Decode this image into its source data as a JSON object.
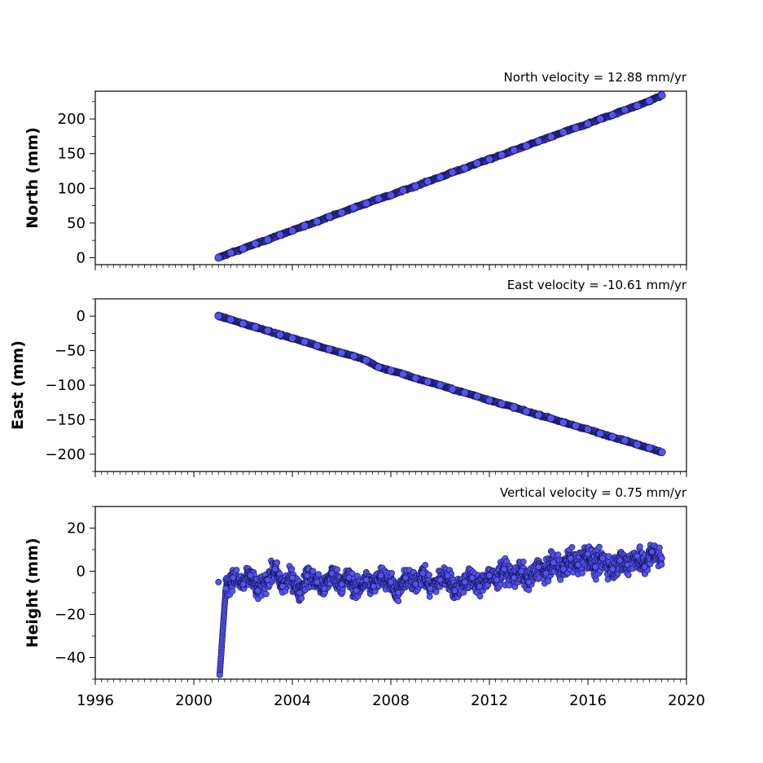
{
  "chart_data": [
    {
      "type": "scatter",
      "title": "North velocity = 12.88 mm/yr",
      "xlabel": "",
      "ylabel": "North (mm)",
      "xlim": [
        1996,
        2020
      ],
      "ylim": [
        -10,
        240
      ],
      "yticks": [
        0,
        50,
        100,
        150,
        200
      ],
      "yticklabels": [
        "0",
        "50",
        "100",
        "150",
        "200"
      ],
      "show_xticklabels": false,
      "grid": false,
      "series": [
        {
          "x": [
            2001.0,
            2001.5,
            2002.0,
            2002.5,
            2003.0,
            2003.5,
            2004.0,
            2004.5,
            2005.0,
            2005.5,
            2006.0,
            2006.5,
            2007.0,
            2007.5,
            2008.0,
            2008.5,
            2009.0,
            2009.5,
            2010.0,
            2010.5,
            2011.0,
            2011.5,
            2012.0,
            2012.5,
            2013.0,
            2013.5,
            2014.0,
            2014.5,
            2015.0,
            2015.5,
            2016.0,
            2016.5,
            2017.0,
            2017.5,
            2018.0,
            2018.5,
            2019.0
          ],
          "y": [
            0,
            7,
            13,
            20,
            26,
            33,
            39,
            46,
            52,
            59,
            65,
            72,
            78,
            85,
            90,
            97,
            103,
            110,
            116,
            123,
            129,
            136,
            142,
            148,
            155,
            161,
            168,
            174,
            181,
            187,
            193,
            200,
            206,
            213,
            219,
            226,
            234
          ]
        }
      ]
    },
    {
      "type": "scatter",
      "title": "East velocity = -10.61 mm/yr",
      "xlabel": "",
      "ylabel": "East (mm)",
      "xlim": [
        1996,
        2020
      ],
      "ylim": [
        -225,
        25
      ],
      "yticks": [
        0,
        -50,
        -100,
        -150,
        -200
      ],
      "yticklabels": [
        "0",
        "−50",
        "−100",
        "−150",
        "−200"
      ],
      "show_xticklabels": false,
      "grid": false,
      "series": [
        {
          "x": [
            2001.0,
            2001.5,
            2002.0,
            2002.5,
            2003.0,
            2003.5,
            2004.0,
            2004.5,
            2005.0,
            2005.5,
            2006.0,
            2006.5,
            2007.0,
            2007.5,
            2008.0,
            2008.5,
            2009.0,
            2009.5,
            2010.0,
            2010.5,
            2011.0,
            2011.5,
            2012.0,
            2012.5,
            2013.0,
            2013.5,
            2014.0,
            2014.5,
            2015.0,
            2015.5,
            2016.0,
            2016.5,
            2017.0,
            2017.5,
            2018.0,
            2018.5,
            2019.0
          ],
          "y": [
            0,
            -5,
            -11,
            -16,
            -21,
            -27,
            -32,
            -37,
            -43,
            -48,
            -53,
            -58,
            -64,
            -74,
            -79,
            -84,
            -90,
            -95,
            -100,
            -106,
            -111,
            -116,
            -122,
            -127,
            -132,
            -138,
            -143,
            -148,
            -154,
            -159,
            -164,
            -170,
            -175,
            -180,
            -186,
            -191,
            -197
          ]
        }
      ]
    },
    {
      "type": "scatter",
      "title": "Vertical velocity = 0.75 mm/yr",
      "xlabel": "",
      "ylabel": "Height (mm)",
      "xlim": [
        1996,
        2020
      ],
      "ylim": [
        -50,
        30
      ],
      "yticks": [
        20,
        0,
        -20,
        -40
      ],
      "yticklabels": [
        "20",
        "0",
        "−20",
        "−40"
      ],
      "xticks": [
        1996,
        2000,
        2004,
        2008,
        2012,
        2016,
        2020
      ],
      "xticklabels": [
        "1996",
        "2000",
        "2004",
        "2008",
        "2012",
        "2016",
        "2020"
      ],
      "show_xticklabels": true,
      "grid": false,
      "series": [
        {
          "x": [
            2001.0,
            2001.05,
            2001.3,
            2001.6,
            2002.0,
            2002.3,
            2002.6,
            2003.0,
            2003.3,
            2003.6,
            2004.0,
            2004.3,
            2004.6,
            2005.0,
            2005.3,
            2005.6,
            2006.0,
            2006.3,
            2006.6,
            2007.0,
            2007.3,
            2007.6,
            2008.0,
            2008.3,
            2008.6,
            2009.0,
            2009.3,
            2009.6,
            2010.0,
            2010.3,
            2010.6,
            2011.0,
            2011.3,
            2011.6,
            2012.0,
            2012.3,
            2012.6,
            2013.0,
            2013.3,
            2013.6,
            2014.0,
            2014.3,
            2014.6,
            2015.0,
            2015.3,
            2015.6,
            2016.0,
            2016.3,
            2016.6,
            2017.0,
            2017.3,
            2017.6,
            2018.0,
            2018.3,
            2018.6,
            2019.0
          ],
          "y": [
            -5,
            -48,
            -8,
            -3,
            -6,
            -2,
            -9,
            -4,
            1,
            -7,
            -3,
            -10,
            -2,
            -5,
            -8,
            -1,
            -6,
            -3,
            -9,
            -4,
            -7,
            -2,
            -5,
            -10,
            -3,
            -6,
            -1,
            -8,
            -4,
            -2,
            -9,
            -5,
            -3,
            -7,
            -2,
            -4,
            1,
            -3,
            0,
            -5,
            2,
            -1,
            4,
            1,
            6,
            3,
            8,
            2,
            6,
            1,
            5,
            3,
            7,
            2,
            9,
            6
          ],
          "spread": [
            7,
            0,
            6,
            6,
            6,
            6,
            6,
            6,
            6,
            6,
            6,
            6,
            6,
            6,
            6,
            6,
            6,
            6,
            6,
            6,
            6,
            6,
            6,
            6,
            6,
            6,
            6,
            6,
            6,
            6,
            6,
            6,
            6,
            6,
            6,
            6,
            6,
            6,
            6,
            6,
            6,
            6,
            7,
            7,
            7,
            7,
            7,
            7,
            7,
            7,
            7,
            7,
            7,
            7,
            7,
            6
          ]
        }
      ]
    }
  ],
  "colors": {
    "marker_fill": "#5454f0",
    "marker_edge": "#15155a",
    "axes": "#000000"
  }
}
